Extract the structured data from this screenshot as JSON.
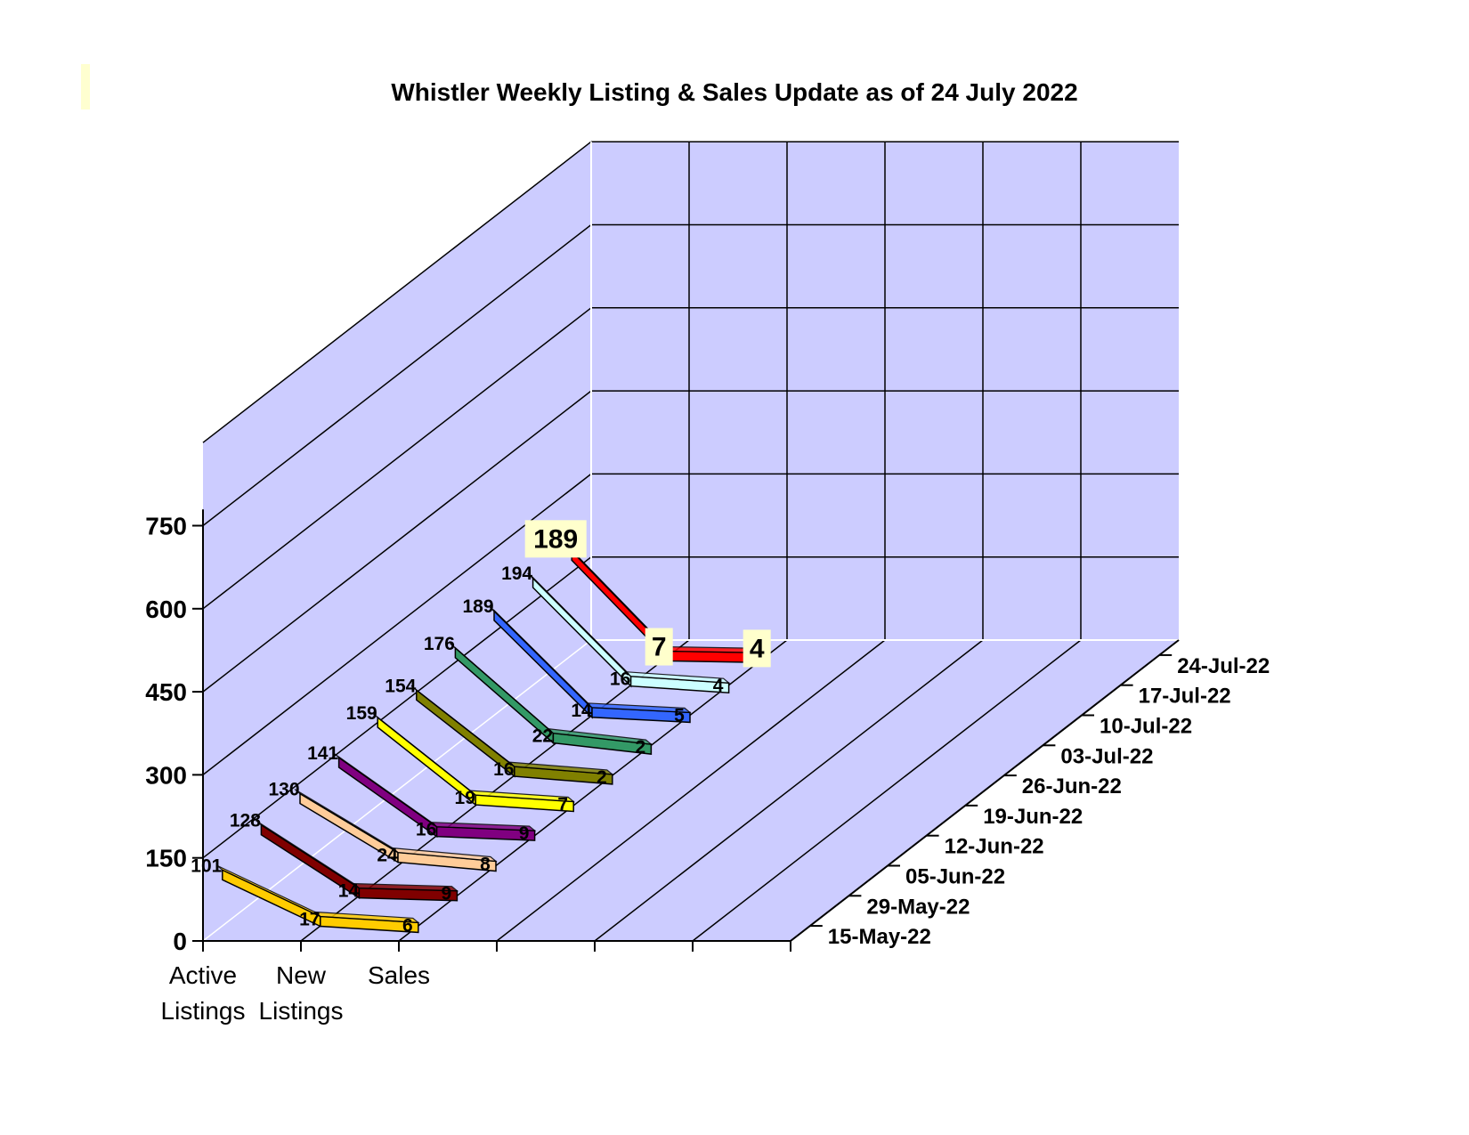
{
  "chart_data": {
    "type": "line",
    "title": "Whistler Weekly Listing & Sales Update as of 24 July 2022",
    "categories": [
      "Active Listings",
      "New Listings",
      "Sales"
    ],
    "y_ticks": [
      "0",
      "150",
      "300",
      "450",
      "600",
      "750"
    ],
    "ylim": [
      0,
      900
    ],
    "series": [
      {
        "name": "15-May-22",
        "color": "#ffcc00",
        "values": [
          101,
          17,
          6
        ]
      },
      {
        "name": "29-May-22",
        "color": "#800000",
        "values": [
          128,
          14,
          9
        ]
      },
      {
        "name": "05-Jun-22",
        "color": "#ffcc99",
        "values": [
          130,
          24,
          8
        ]
      },
      {
        "name": "12-Jun-22",
        "color": "#800080",
        "values": [
          141,
          16,
          9
        ]
      },
      {
        "name": "19-Jun-22",
        "color": "#ffff00",
        "values": [
          159,
          19,
          7
        ]
      },
      {
        "name": "26-Jun-22",
        "color": "#808000",
        "values": [
          154,
          16,
          2
        ]
      },
      {
        "name": "03-Jul-22",
        "color": "#339966",
        "values": [
          176,
          22,
          2
        ]
      },
      {
        "name": "10-Jul-22",
        "color": "#3366ff",
        "values": [
          189,
          14,
          5
        ]
      },
      {
        "name": "17-Jul-22",
        "color": "#ccffff",
        "values": [
          194,
          16,
          4
        ]
      },
      {
        "name": "24-Jul-22",
        "color": "#ff0000",
        "values": [
          189,
          7,
          4
        ]
      }
    ],
    "highlight_series": "24-Jul-22",
    "grid": true,
    "colors": {
      "wall": "#ccccff",
      "grid": "#000000",
      "highlight_label_bg": "#ffffcc"
    }
  }
}
